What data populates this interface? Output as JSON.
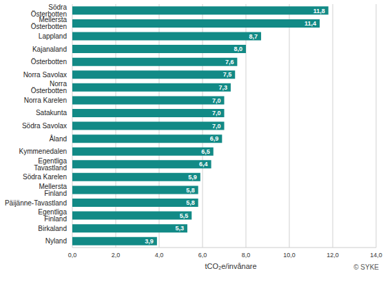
{
  "chart_data": {
    "type": "bar",
    "orientation": "horizontal",
    "categories": [
      "Södra Österbotten",
      "Mellersta Österbotten",
      "Lappland",
      "Kajanaland",
      "Österbotten",
      "Norra Savolax",
      "Norra Österbotten",
      "Norra Karelen",
      "Satakunta",
      "Södra Savolax",
      "Åland",
      "Kymmenedalen",
      "Egentliga Tavastland",
      "Södra Karelen",
      "Mellersta Finland",
      "Päijänne-Tavastland",
      "Egentliga Finland",
      "Birkaland",
      "Nyland"
    ],
    "values": [
      11.8,
      11.4,
      8.7,
      8.0,
      7.6,
      7.5,
      7.3,
      7.0,
      7.0,
      7.0,
      6.9,
      6.5,
      6.4,
      5.9,
      5.8,
      5.8,
      5.5,
      5.3,
      3.9
    ],
    "value_labels": [
      "11,8",
      "11,4",
      "8,7",
      "8,0",
      "7,6",
      "7,5",
      "7,3",
      "7,0",
      "7,0",
      "7,0",
      "6,9",
      "6,5",
      "6,4",
      "5,9",
      "5,8",
      "5,8",
      "5,5",
      "5,3",
      "3,9"
    ],
    "data_labels": true,
    "color": "#128a86",
    "xlim": [
      0,
      14
    ],
    "xticks": [
      {
        "value": 0,
        "label": "0,0"
      },
      {
        "value": 2,
        "label": "2,0"
      },
      {
        "value": 4,
        "label": "4,0"
      },
      {
        "value": 6,
        "label": "6,0"
      },
      {
        "value": 8,
        "label": "8,0"
      },
      {
        "value": 10,
        "label": "10,0"
      },
      {
        "value": 12,
        "label": "12,0"
      },
      {
        "value": 14,
        "label": "14,0"
      }
    ],
    "x_label": "tCO₂e/invånare",
    "annotation": "© SYKE",
    "grid": true
  }
}
